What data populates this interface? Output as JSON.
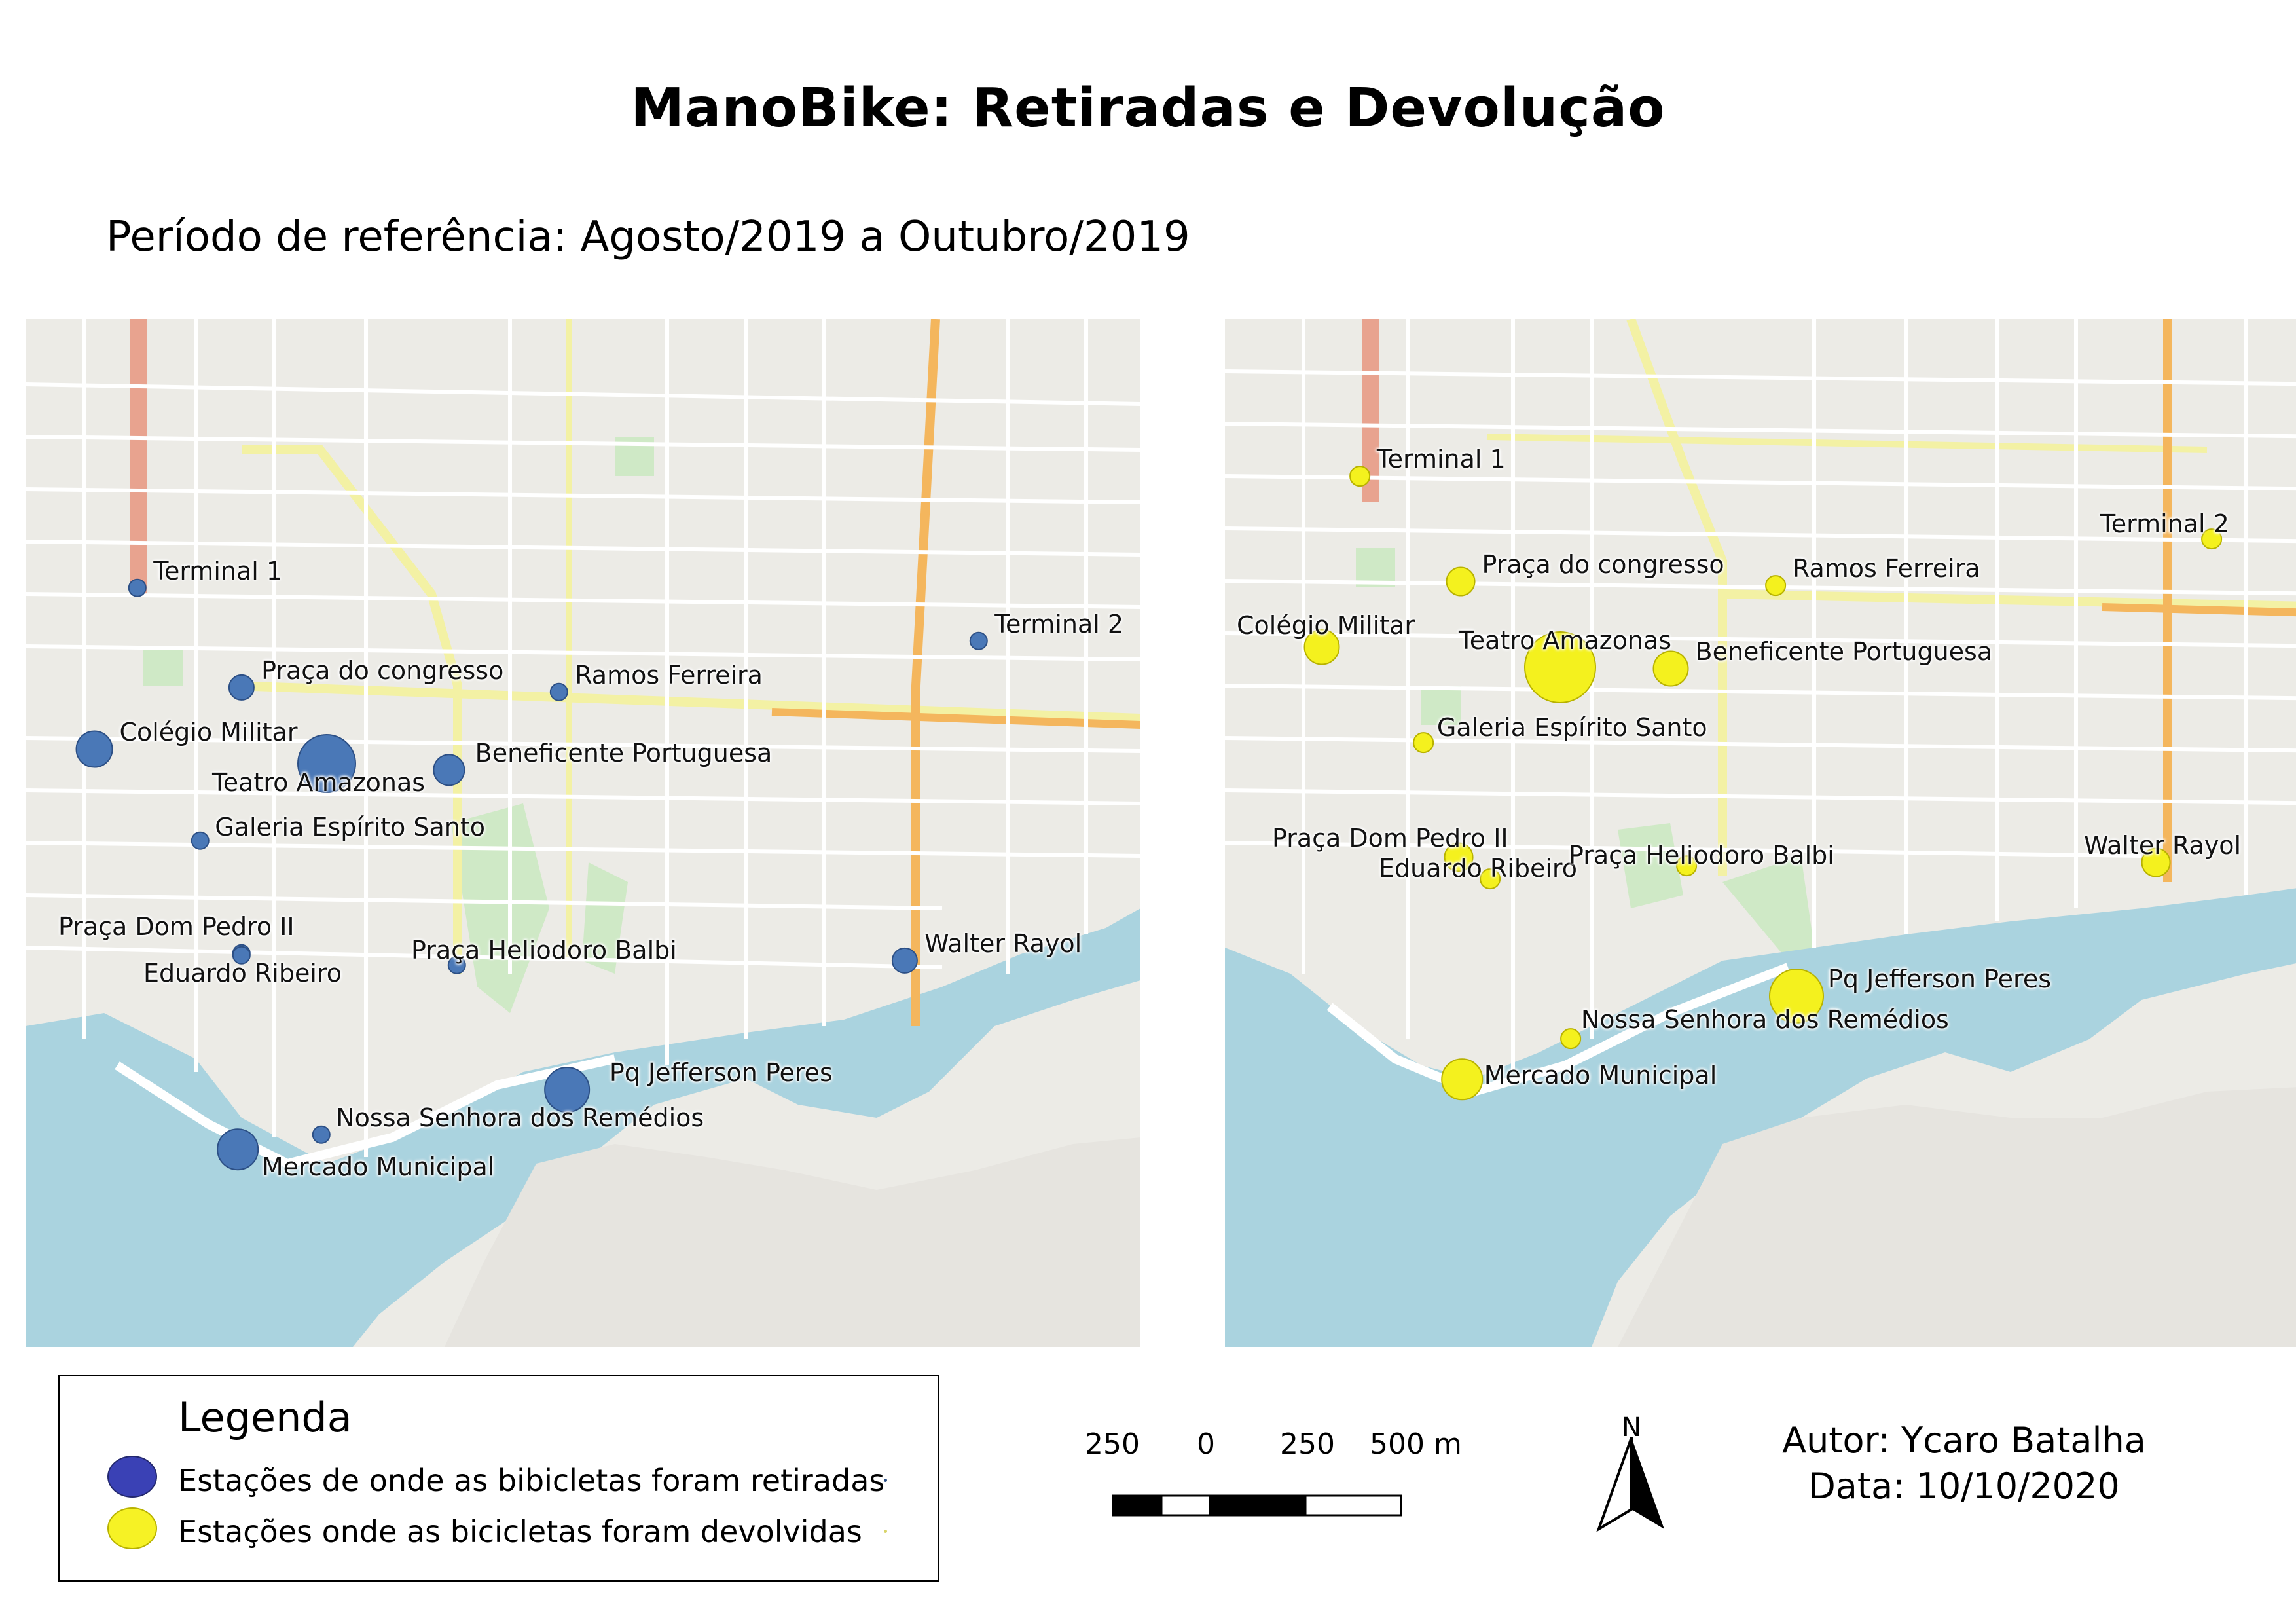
{
  "title": "ManoBike: Retiradas e Devolução",
  "subtitle": "Período de referência: Agosto/2019 a Outubro/2019",
  "maps": {
    "left": {
      "color": "#4a78b7",
      "stations": [
        {
          "name": "Terminal 1",
          "trips": 1
        },
        {
          "name": "Terminal 2",
          "trips": 1
        },
        {
          "name": "Praça do congresso",
          "trips": 2
        },
        {
          "name": "Ramos Ferreira",
          "trips": 1
        },
        {
          "name": "Colégio Militar",
          "trips": 4
        },
        {
          "name": "Teatro Amazonas",
          "trips": 10
        },
        {
          "name": "Beneficente Portuguesa",
          "trips": 3
        },
        {
          "name": "Galeria Espírito Santo",
          "trips": 1
        },
        {
          "name": "Praça Dom Pedro II",
          "trips": 1
        },
        {
          "name": "Eduardo Ribeiro",
          "trips": 1
        },
        {
          "name": "Praça Heliodoro Balbi",
          "trips": 1
        },
        {
          "name": "Walter Rayol",
          "trips": 2
        },
        {
          "name": "Pq Jefferson Peres",
          "trips": 6
        },
        {
          "name": "Nossa Senhora dos Remédios",
          "trips": 1
        },
        {
          "name": "Mercado Municipal",
          "trips": 5
        }
      ]
    },
    "right": {
      "color": "#f4f11e",
      "stations": [
        {
          "name": "Terminal 1",
          "trips": 1
        },
        {
          "name": "Terminal 2",
          "trips": 1
        },
        {
          "name": "Praça do congresso",
          "trips": 2
        },
        {
          "name": "Ramos Ferreira",
          "trips": 1
        },
        {
          "name": "Colégio Militar",
          "trips": 3
        },
        {
          "name": "Teatro Amazonas",
          "trips": 12
        },
        {
          "name": "Beneficente Portuguesa",
          "trips": 3
        },
        {
          "name": "Galeria Espírito Santo",
          "trips": 1
        },
        {
          "name": "Praça Dom Pedro II",
          "trips": 2
        },
        {
          "name": "Eduardo Ribeiro",
          "trips": 1
        },
        {
          "name": "Praça Heliodoro Balbi",
          "trips": 1
        },
        {
          "name": "Walter Rayol",
          "trips": 2
        },
        {
          "name": "Pq Jefferson Peres",
          "trips": 7
        },
        {
          "name": "Nossa Senhora dos Remédios",
          "trips": 1
        },
        {
          "name": "Mercado Municipal",
          "trips": 4
        }
      ]
    }
  },
  "legend": {
    "title": "Legenda",
    "items": [
      {
        "label": "Estações de onde as bibicletas foram retiradas",
        "color": "#3a41b5"
      },
      {
        "label": "Estações onde as bicicletas foram devolvidas",
        "color": "#f6f225"
      }
    ]
  },
  "scale": {
    "labels": [
      "250",
      "0",
      "250",
      "500 m"
    ]
  },
  "north": {
    "label": "N"
  },
  "author": {
    "line1": "Autor: Ycaro Batalha",
    "line2": "Data: 10/10/2020"
  }
}
